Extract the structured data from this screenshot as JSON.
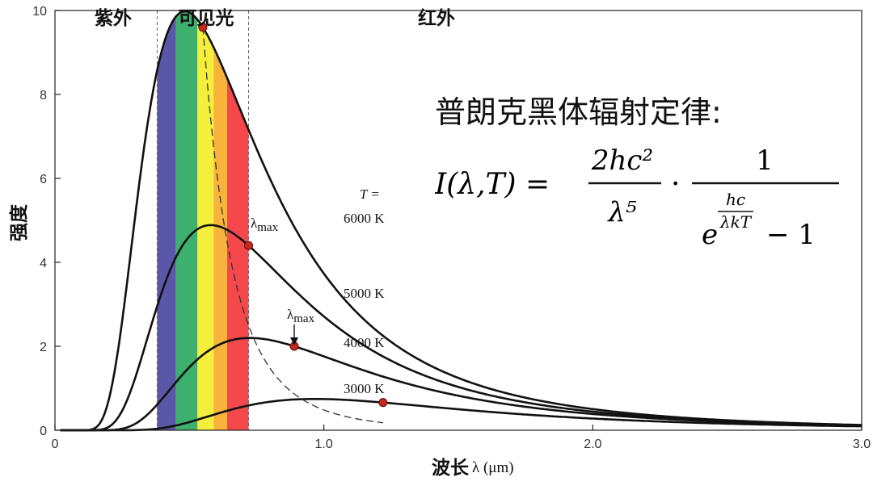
{
  "chart_data": {
    "type": "line",
    "title": "",
    "xlabel": "波长",
    "xlabel_unit": "λ (μm)",
    "ylabel": "强度",
    "xlim": [
      0,
      3.0
    ],
    "ylim": [
      0,
      10
    ],
    "x_ticks": [
      "0",
      "1.0",
      "2.0",
      "3.0"
    ],
    "y_ticks": [
      "0",
      "2",
      "4",
      "6",
      "8",
      "10"
    ],
    "grid": false,
    "series": [
      {
        "name": "6000 K",
        "T": 6000,
        "peak": [
          0.55,
          9.6
        ]
      },
      {
        "name": "5000 K",
        "T": 5000,
        "peak": [
          0.72,
          4.4
        ]
      },
      {
        "name": "4000 K",
        "T": 4000,
        "peak": [
          0.89,
          2.0
        ]
      },
      {
        "name": "3000 K",
        "T": 3000,
        "peak": [
          1.22,
          0.66
        ]
      }
    ],
    "legend_header": "T =",
    "wien_curve": "dashed",
    "peak_label": "λmax",
    "regions": [
      {
        "label": "紫外",
        "range": [
          0,
          0.38
        ]
      },
      {
        "label": "可见光",
        "range": [
          0.38,
          0.72
        ]
      },
      {
        "label": "红外",
        "range": [
          0.72,
          3.0
        ]
      }
    ],
    "visible_bands": [
      {
        "color": "#5b57a8",
        "from": 0.38,
        "to": 0.45
      },
      {
        "color": "#3daf6e",
        "from": 0.45,
        "to": 0.53
      },
      {
        "color": "#f4ef3c",
        "from": 0.53,
        "to": 0.59
      },
      {
        "color": "#f8b43a",
        "from": 0.59,
        "to": 0.64
      },
      {
        "color": "#f4484a",
        "from": 0.64,
        "to": 0.72
      }
    ]
  },
  "annotation": {
    "law_title": "普朗克黑体辐射定律:",
    "formula": {
      "lhs": "I(λ,T) =",
      "num1": "2hc²",
      "den1": "λ⁵",
      "dot": "·",
      "num2": "1",
      "den2_base": "e",
      "exp_num": "hc",
      "exp_den": "λkT",
      "den2_tail": "− 1"
    }
  }
}
